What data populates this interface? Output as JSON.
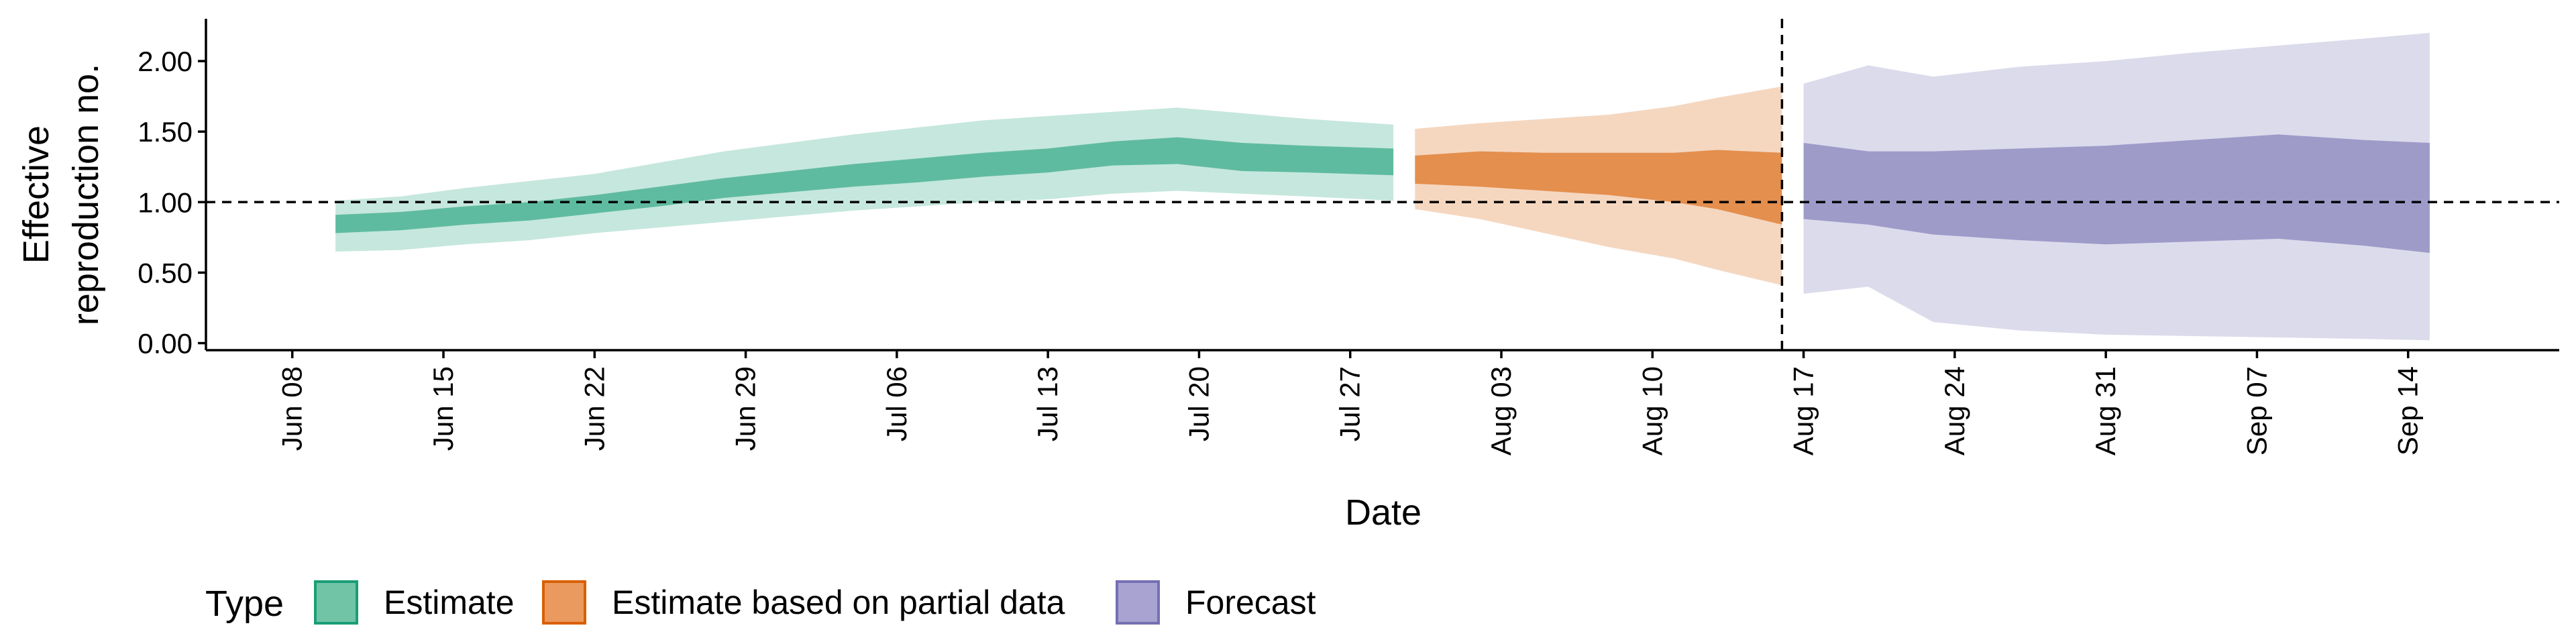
{
  "chart_data": {
    "type": "area",
    "xlabel": "Date",
    "ylabel": [
      "Effective",
      "reproduction no."
    ],
    "ylim": [
      -0.05,
      2.3
    ],
    "xlim": [
      "2020-06-04",
      "2020-09-21"
    ],
    "grid": false,
    "reference_lines": [
      {
        "axis": "y",
        "value": 1.0,
        "style": "dashed"
      },
      {
        "axis": "x",
        "value": "2020-08-16",
        "style": "dashed"
      }
    ],
    "x_ticks": [
      {
        "date": "2020-06-08",
        "label": "Jun 08"
      },
      {
        "date": "2020-06-15",
        "label": "Jun 15"
      },
      {
        "date": "2020-06-22",
        "label": "Jun 22"
      },
      {
        "date": "2020-06-29",
        "label": "Jun 29"
      },
      {
        "date": "2020-07-06",
        "label": "Jul 06"
      },
      {
        "date": "2020-07-13",
        "label": "Jul 13"
      },
      {
        "date": "2020-07-20",
        "label": "Jul 20"
      },
      {
        "date": "2020-07-27",
        "label": "Jul 27"
      },
      {
        "date": "2020-08-03",
        "label": "Aug 03"
      },
      {
        "date": "2020-08-10",
        "label": "Aug 10"
      },
      {
        "date": "2020-08-17",
        "label": "Aug 17"
      },
      {
        "date": "2020-08-24",
        "label": "Aug 24"
      },
      {
        "date": "2020-08-31",
        "label": "Aug 31"
      },
      {
        "date": "2020-09-07",
        "label": "Sep 07"
      },
      {
        "date": "2020-09-14",
        "label": "Sep 14"
      }
    ],
    "y_ticks": [
      {
        "value": 0.0,
        "label": "0.00"
      },
      {
        "value": 0.5,
        "label": "0.50"
      },
      {
        "value": 1.0,
        "label": "1.00"
      },
      {
        "value": 1.5,
        "label": "1.50"
      },
      {
        "value": 2.0,
        "label": "2.00"
      }
    ],
    "legend": {
      "title": "Type",
      "position": "bottom-left",
      "items": [
        {
          "label": "Estimate",
          "fill": "#71c4a6",
          "border": "#1b9e77"
        },
        {
          "label": "Estimate based on partial data",
          "fill": "#ea9a5e",
          "border": "#d95f02"
        },
        {
          "label": "Forecast",
          "fill": "#a8a3d0",
          "border": "#7570b3"
        }
      ]
    },
    "series": [
      {
        "name": "Estimate",
        "color": "#1b9e77",
        "points": [
          {
            "date": "2020-06-10",
            "outer": [
              0.65,
              1.01
            ],
            "inner": [
              0.78,
              0.91
            ]
          },
          {
            "date": "2020-06-13",
            "outer": [
              0.66,
              1.04
            ],
            "inner": [
              0.8,
              0.93
            ]
          },
          {
            "date": "2020-06-16",
            "outer": [
              0.7,
              1.1
            ],
            "inner": [
              0.84,
              0.97
            ]
          },
          {
            "date": "2020-06-19",
            "outer": [
              0.73,
              1.15
            ],
            "inner": [
              0.87,
              1.0
            ]
          },
          {
            "date": "2020-06-22",
            "outer": [
              0.78,
              1.2
            ],
            "inner": [
              0.92,
              1.05
            ]
          },
          {
            "date": "2020-06-25",
            "outer": [
              0.82,
              1.28
            ],
            "inner": [
              0.97,
              1.11
            ]
          },
          {
            "date": "2020-06-28",
            "outer": [
              0.86,
              1.36
            ],
            "inner": [
              1.03,
              1.17
            ]
          },
          {
            "date": "2020-07-01",
            "outer": [
              0.9,
              1.42
            ],
            "inner": [
              1.07,
              1.22
            ]
          },
          {
            "date": "2020-07-04",
            "outer": [
              0.94,
              1.48
            ],
            "inner": [
              1.11,
              1.27
            ]
          },
          {
            "date": "2020-07-07",
            "outer": [
              0.97,
              1.53
            ],
            "inner": [
              1.14,
              1.31
            ]
          },
          {
            "date": "2020-07-10",
            "outer": [
              1.0,
              1.58
            ],
            "inner": [
              1.18,
              1.35
            ]
          },
          {
            "date": "2020-07-13",
            "outer": [
              1.02,
              1.61
            ],
            "inner": [
              1.21,
              1.38
            ]
          },
          {
            "date": "2020-07-16",
            "outer": [
              1.06,
              1.64
            ],
            "inner": [
              1.26,
              1.43
            ]
          },
          {
            "date": "2020-07-19",
            "outer": [
              1.08,
              1.67
            ],
            "inner": [
              1.27,
              1.46
            ]
          },
          {
            "date": "2020-07-22",
            "outer": [
              1.06,
              1.63
            ],
            "inner": [
              1.22,
              1.42
            ]
          },
          {
            "date": "2020-07-25",
            "outer": [
              1.04,
              1.59
            ],
            "inner": [
              1.21,
              1.4
            ]
          },
          {
            "date": "2020-07-29",
            "outer": [
              1.01,
              1.55
            ],
            "inner": [
              1.19,
              1.38
            ]
          }
        ]
      },
      {
        "name": "Estimate based on partial data",
        "color": "#d95f02",
        "points": [
          {
            "date": "2020-07-30",
            "outer": [
              0.95,
              1.52
            ],
            "inner": [
              1.13,
              1.33
            ]
          },
          {
            "date": "2020-08-02",
            "outer": [
              0.88,
              1.56
            ],
            "inner": [
              1.11,
              1.36
            ]
          },
          {
            "date": "2020-08-05",
            "outer": [
              0.78,
              1.59
            ],
            "inner": [
              1.08,
              1.35
            ]
          },
          {
            "date": "2020-08-08",
            "outer": [
              0.68,
              1.62
            ],
            "inner": [
              1.05,
              1.35
            ]
          },
          {
            "date": "2020-08-11",
            "outer": [
              0.6,
              1.68
            ],
            "inner": [
              1.0,
              1.35
            ]
          },
          {
            "date": "2020-08-13",
            "outer": [
              0.52,
              1.74
            ],
            "inner": [
              0.95,
              1.37
            ]
          },
          {
            "date": "2020-08-16",
            "outer": [
              0.41,
              1.82
            ],
            "inner": [
              0.84,
              1.35
            ]
          }
        ]
      },
      {
        "name": "Forecast",
        "color": "#7570b3",
        "points": [
          {
            "date": "2020-08-17",
            "outer": [
              0.35,
              1.84
            ],
            "inner": [
              0.88,
              1.42
            ]
          },
          {
            "date": "2020-08-20",
            "outer": [
              0.4,
              1.97
            ],
            "inner": [
              0.84,
              1.36
            ]
          },
          {
            "date": "2020-08-23",
            "outer": [
              0.15,
              1.89
            ],
            "inner": [
              0.77,
              1.36
            ]
          },
          {
            "date": "2020-08-27",
            "outer": [
              0.09,
              1.96
            ],
            "inner": [
              0.73,
              1.38
            ]
          },
          {
            "date": "2020-08-31",
            "outer": [
              0.06,
              2.0
            ],
            "inner": [
              0.7,
              1.4
            ]
          },
          {
            "date": "2020-09-04",
            "outer": [
              0.05,
              2.06
            ],
            "inner": [
              0.72,
              1.44
            ]
          },
          {
            "date": "2020-09-08",
            "outer": [
              0.04,
              2.11
            ],
            "inner": [
              0.74,
              1.48
            ]
          },
          {
            "date": "2020-09-12",
            "outer": [
              0.03,
              2.16
            ],
            "inner": [
              0.69,
              1.44
            ]
          },
          {
            "date": "2020-09-15",
            "outer": [
              0.02,
              2.2
            ],
            "inner": [
              0.64,
              1.42
            ]
          }
        ]
      }
    ]
  }
}
